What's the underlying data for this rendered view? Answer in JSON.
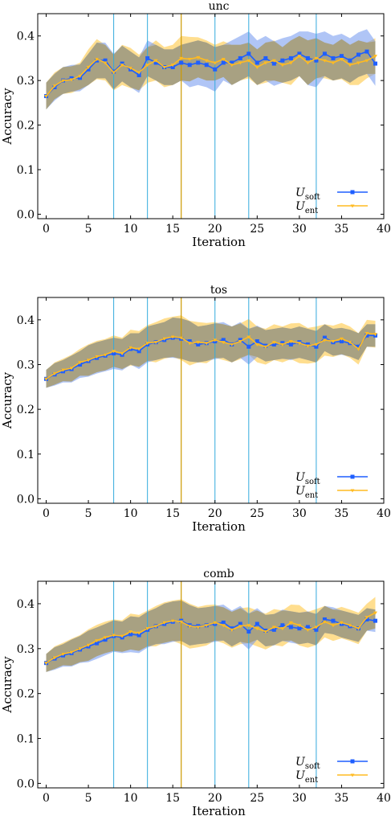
{
  "colors": {
    "soft": "#1f5fff",
    "ent": "#ffbb22",
    "soft_band": "#6f95ef",
    "ent_band": "#ffd36a",
    "overlap": "#a8a07e",
    "vline_blue": "#33aadd",
    "vline_orange": "#cc9900"
  },
  "chart_data": [
    {
      "type": "line",
      "title": "unc",
      "xlabel": "Iteration",
      "ylabel": "Accuracy",
      "xlim": [
        -1,
        40
      ],
      "ylim": [
        -0.01,
        0.45
      ],
      "xticks": [
        "0",
        "5",
        "10",
        "15",
        "20",
        "25",
        "30",
        "35",
        "40"
      ],
      "yticks": [
        "0.0",
        "0.1",
        "0.2",
        "0.3",
        "0.4"
      ],
      "vlines_blue": [
        8,
        12,
        20,
        24,
        32
      ],
      "vline_orange": 16,
      "legend": "bottom-right",
      "series": [
        {
          "name": "U",
          "sub": "soft",
          "key": "soft",
          "values": [
            0.265,
            0.285,
            0.3,
            0.305,
            0.306,
            0.325,
            0.345,
            0.345,
            0.32,
            0.338,
            0.325,
            0.312,
            0.35,
            0.34,
            0.33,
            0.33,
            0.34,
            0.335,
            0.34,
            0.335,
            0.325,
            0.34,
            0.34,
            0.35,
            0.36,
            0.34,
            0.35,
            0.338,
            0.345,
            0.35,
            0.36,
            0.35,
            0.345,
            0.36,
            0.35,
            0.355,
            0.345,
            0.358,
            0.365,
            0.338
          ],
          "band": [
            0.03,
            0.03,
            0.03,
            0.03,
            0.03,
            0.035,
            0.04,
            0.04,
            0.04,
            0.04,
            0.04,
            0.04,
            0.04,
            0.04,
            0.04,
            0.04,
            0.04,
            0.05,
            0.05,
            0.05,
            0.05,
            0.04,
            0.05,
            0.05,
            0.05,
            0.05,
            0.05,
            0.05,
            0.05,
            0.05,
            0.05,
            0.06,
            0.06,
            0.05,
            0.05,
            0.05,
            0.05,
            0.05,
            0.05,
            0.05
          ]
        },
        {
          "name": "U",
          "sub": "ent",
          "key": "ent",
          "values": [
            0.265,
            0.288,
            0.3,
            0.302,
            0.31,
            0.33,
            0.348,
            0.34,
            0.318,
            0.335,
            0.328,
            0.318,
            0.335,
            0.345,
            0.33,
            0.335,
            0.35,
            0.348,
            0.352,
            0.345,
            0.34,
            0.348,
            0.335,
            0.34,
            0.345,
            0.33,
            0.34,
            0.345,
            0.335,
            0.34,
            0.355,
            0.34,
            0.35,
            0.345,
            0.34,
            0.348,
            0.335,
            0.34,
            0.345,
            0.355
          ],
          "band": [
            0.03,
            0.03,
            0.03,
            0.03,
            0.03,
            0.04,
            0.045,
            0.04,
            0.04,
            0.045,
            0.045,
            0.04,
            0.04,
            0.045,
            0.045,
            0.045,
            0.05,
            0.05,
            0.045,
            0.045,
            0.04,
            0.04,
            0.045,
            0.04,
            0.04,
            0.04,
            0.045,
            0.045,
            0.04,
            0.05,
            0.045,
            0.05,
            0.045,
            0.04,
            0.04,
            0.045,
            0.045,
            0.05,
            0.04,
            0.04
          ]
        }
      ]
    },
    {
      "type": "line",
      "title": "tos",
      "xlabel": "Iteration",
      "ylabel": "Accuracy",
      "xlim": [
        -1,
        40
      ],
      "ylim": [
        -0.01,
        0.45
      ],
      "xticks": [
        "0",
        "5",
        "10",
        "15",
        "20",
        "25",
        "30",
        "35",
        "40"
      ],
      "yticks": [
        "0.0",
        "0.1",
        "0.2",
        "0.3",
        "0.4"
      ],
      "vlines_blue": [
        8,
        12,
        20,
        24,
        32
      ],
      "vline_orange": 16,
      "legend": "bottom-right",
      "series": [
        {
          "name": "U",
          "sub": "soft",
          "key": "soft",
          "values": [
            0.268,
            0.278,
            0.285,
            0.29,
            0.3,
            0.308,
            0.315,
            0.32,
            0.325,
            0.322,
            0.335,
            0.33,
            0.345,
            0.35,
            0.355,
            0.36,
            0.358,
            0.352,
            0.345,
            0.348,
            0.352,
            0.355,
            0.345,
            0.355,
            0.34,
            0.352,
            0.342,
            0.345,
            0.348,
            0.345,
            0.35,
            0.345,
            0.34,
            0.36,
            0.35,
            0.352,
            0.348,
            0.34,
            0.365,
            0.365
          ],
          "band": [
            0.02,
            0.025,
            0.025,
            0.03,
            0.03,
            0.035,
            0.035,
            0.035,
            0.035,
            0.035,
            0.035,
            0.04,
            0.04,
            0.04,
            0.04,
            0.045,
            0.045,
            0.045,
            0.04,
            0.04,
            0.04,
            0.04,
            0.04,
            0.04,
            0.04,
            0.035,
            0.035,
            0.035,
            0.035,
            0.035,
            0.035,
            0.035,
            0.035,
            0.03,
            0.03,
            0.03,
            0.03,
            0.03,
            0.025,
            0.025
          ]
        },
        {
          "name": "U",
          "sub": "ent",
          "key": "ent",
          "values": [
            0.268,
            0.28,
            0.288,
            0.292,
            0.305,
            0.31,
            0.318,
            0.322,
            0.33,
            0.325,
            0.338,
            0.335,
            0.348,
            0.35,
            0.358,
            0.362,
            0.36,
            0.348,
            0.35,
            0.348,
            0.355,
            0.35,
            0.345,
            0.352,
            0.362,
            0.345,
            0.34,
            0.35,
            0.345,
            0.352,
            0.348,
            0.342,
            0.345,
            0.355,
            0.352,
            0.358,
            0.35,
            0.335,
            0.37,
            0.368
          ],
          "band": [
            0.02,
            0.025,
            0.025,
            0.03,
            0.03,
            0.035,
            0.035,
            0.035,
            0.035,
            0.035,
            0.04,
            0.04,
            0.04,
            0.045,
            0.045,
            0.045,
            0.05,
            0.05,
            0.045,
            0.045,
            0.04,
            0.04,
            0.04,
            0.04,
            0.04,
            0.04,
            0.04,
            0.04,
            0.04,
            0.04,
            0.045,
            0.04,
            0.04,
            0.035,
            0.035,
            0.035,
            0.035,
            0.035,
            0.03,
            0.03
          ]
        }
      ]
    },
    {
      "type": "line",
      "title": "comb",
      "xlabel": "Iteration",
      "ylabel": "Accuracy",
      "xlim": [
        -1,
        40
      ],
      "ylim": [
        -0.01,
        0.45
      ],
      "xticks": [
        "0",
        "5",
        "10",
        "15",
        "20",
        "25",
        "30",
        "35",
        "40"
      ],
      "yticks": [
        "0.0",
        "0.1",
        "0.2",
        "0.3",
        "0.4"
      ],
      "vlines_blue": [
        8,
        12,
        20,
        24,
        32
      ],
      "vline_orange": 16,
      "legend": "bottom-right",
      "series": [
        {
          "name": "U",
          "sub": "soft",
          "key": "soft",
          "values": [
            0.268,
            0.278,
            0.285,
            0.29,
            0.298,
            0.305,
            0.312,
            0.32,
            0.328,
            0.325,
            0.332,
            0.33,
            0.342,
            0.35,
            0.355,
            0.36,
            0.362,
            0.352,
            0.35,
            0.352,
            0.355,
            0.358,
            0.345,
            0.355,
            0.338,
            0.355,
            0.34,
            0.342,
            0.352,
            0.348,
            0.345,
            0.348,
            0.342,
            0.365,
            0.362,
            0.355,
            0.35,
            0.345,
            0.365,
            0.362
          ],
          "band": [
            0.02,
            0.025,
            0.025,
            0.03,
            0.03,
            0.035,
            0.035,
            0.035,
            0.035,
            0.035,
            0.04,
            0.04,
            0.04,
            0.04,
            0.045,
            0.045,
            0.045,
            0.045,
            0.04,
            0.04,
            0.04,
            0.04,
            0.04,
            0.04,
            0.04,
            0.035,
            0.035,
            0.035,
            0.035,
            0.035,
            0.035,
            0.035,
            0.035,
            0.03,
            0.03,
            0.03,
            0.03,
            0.03,
            0.025,
            0.025
          ]
        },
        {
          "name": "U",
          "sub": "ent",
          "key": "ent",
          "values": [
            0.268,
            0.28,
            0.288,
            0.292,
            0.3,
            0.308,
            0.318,
            0.325,
            0.33,
            0.328,
            0.338,
            0.335,
            0.345,
            0.35,
            0.358,
            0.362,
            0.36,
            0.35,
            0.348,
            0.352,
            0.358,
            0.352,
            0.342,
            0.35,
            0.352,
            0.345,
            0.338,
            0.348,
            0.345,
            0.358,
            0.352,
            0.342,
            0.348,
            0.36,
            0.352,
            0.358,
            0.352,
            0.345,
            0.37,
            0.38
          ],
          "band": [
            0.02,
            0.025,
            0.025,
            0.03,
            0.03,
            0.035,
            0.035,
            0.035,
            0.035,
            0.035,
            0.04,
            0.04,
            0.04,
            0.045,
            0.045,
            0.045,
            0.05,
            0.05,
            0.045,
            0.045,
            0.04,
            0.04,
            0.04,
            0.04,
            0.04,
            0.04,
            0.04,
            0.04,
            0.04,
            0.04,
            0.045,
            0.04,
            0.04,
            0.035,
            0.035,
            0.035,
            0.035,
            0.035,
            0.03,
            0.035
          ]
        }
      ]
    }
  ]
}
